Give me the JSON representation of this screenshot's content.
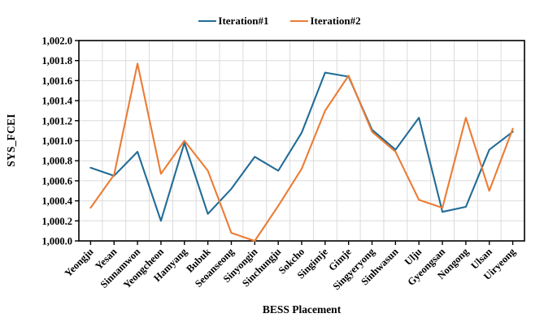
{
  "legend": {
    "items": [
      {
        "label": "Iteration#1",
        "color": "#226C96"
      },
      {
        "label": "Iteration#2",
        "color": "#EB7C35"
      }
    ]
  },
  "chart_data": {
    "type": "line",
    "title": "",
    "xlabel": "BESS Placement",
    "ylabel": "SYS_FCEI",
    "categories": [
      "Yeongju",
      "Yesan",
      "Sinnamwon",
      "Yeongcheon",
      "Hamyang",
      "Bubuk",
      "Seoanseong",
      "Sinyongin",
      "Sinchungju",
      "Sokcho",
      "Singimje",
      "Gimje",
      "Singyeryong",
      "Sinhwasun",
      "Ulju",
      "Gyeongsan",
      "Nongong",
      "Ulsan",
      "Uiryeong"
    ],
    "series": [
      {
        "name": "Iteration#1",
        "color": "#226C96",
        "values": [
          1000.73,
          1000.65,
          1000.89,
          1000.2,
          1000.98,
          1000.27,
          1000.52,
          1000.84,
          1000.7,
          1001.08,
          1001.68,
          1001.64,
          1001.11,
          1000.91,
          1001.23,
          1000.29,
          1000.34,
          1000.91,
          1001.09
        ]
      },
      {
        "name": "Iteration#2",
        "color": "#EB7C35",
        "values": [
          1000.33,
          1000.66,
          1001.77,
          1000.67,
          1001.0,
          1000.7,
          1000.08,
          1000.0,
          1000.35,
          1000.72,
          1001.3,
          1001.65,
          1001.09,
          1000.89,
          1000.41,
          1000.33,
          1001.23,
          1000.5,
          1001.12
        ]
      }
    ],
    "ylim": [
      1000.0,
      1002.0
    ],
    "y_tick_step": 0.2,
    "y_tick_labels": [
      "1,000.0",
      "1,000.2",
      "1,000.4",
      "1,000.6",
      "1,000.8",
      "1,001.0",
      "1,001.2",
      "1,001.4",
      "1,001.6",
      "1,001.8",
      "1,002.0"
    ],
    "grid": true,
    "legend_position": "top-center",
    "gridline_color": "#DBDBDB",
    "axis_color": "#000000",
    "tick_label_color": "#000000"
  }
}
